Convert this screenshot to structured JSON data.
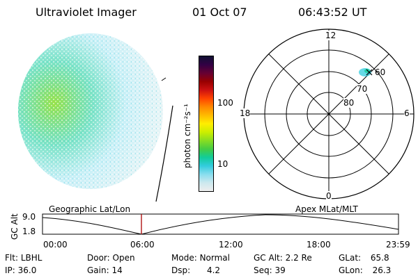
{
  "header": {
    "title": "Ultraviolet Imager",
    "date": "01 Oct 07",
    "time": "06:43:52 UT"
  },
  "colorbar": {
    "label": "photon cm⁻²s⁻¹",
    "ticks": [
      "100",
      "10"
    ],
    "colors": [
      "#111133",
      "#330044",
      "#660033",
      "#990000",
      "#cc1111",
      "#ff4400",
      "#ff8800",
      "#ffbb00",
      "#ffee00",
      "#ccee00",
      "#88dd22",
      "#44cc44",
      "#11cc99",
      "#33ccdd",
      "#88ddee",
      "#cce8ee",
      "#eeeeee"
    ]
  },
  "polar": {
    "mlt_labels": {
      "top": "12",
      "left": "18",
      "right": "6",
      "bottom": "0"
    },
    "lat_labels": [
      "60",
      "70",
      "80"
    ]
  },
  "timeline": {
    "ylabel": "GC Alt",
    "ymax": "9.0",
    "ymin": "1.8",
    "left_title": "Geographic Lat/Lon",
    "right_title": "Apex MLat/MLT",
    "xticks": [
      "00:00",
      "06:00",
      "12:00",
      "18:00",
      "23:59"
    ]
  },
  "info": {
    "row1": [
      {
        "k": "Flt:",
        "v": "LBHL"
      },
      {
        "k": "Door:",
        "v": "Open"
      },
      {
        "k": "Mode:",
        "v": "Normal"
      },
      {
        "k": "GC Alt:",
        "v": "2.2 Re"
      },
      {
        "k": "GLat:",
        "v": "65.8"
      }
    ],
    "row2": [
      {
        "k": "IP:",
        "v": "36.0"
      },
      {
        "k": "Gain:",
        "v": "14"
      },
      {
        "k": "Dsp:",
        "v": "4.2"
      },
      {
        "k": "Seq:",
        "v": "39"
      },
      {
        "k": "GLon:",
        "v": "26.3"
      }
    ]
  }
}
